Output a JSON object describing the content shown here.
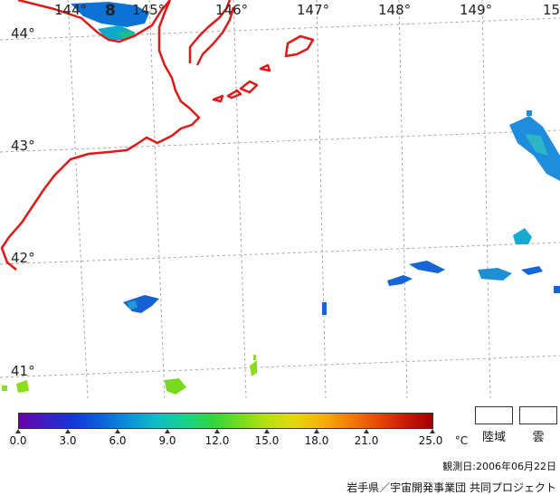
{
  "map": {
    "lon_labels": [
      "144°",
      "8",
      "145°",
      "146°",
      "147°",
      "148°",
      "149°",
      "15"
    ],
    "lat_labels": [
      "44°",
      "43°",
      "42°",
      "41°"
    ]
  },
  "colorbar": {
    "colors": [
      "#6a00a8",
      "#3c1fc4",
      "#1238d6",
      "#0a63dc",
      "#0a93d8",
      "#12bcc8",
      "#18d28e",
      "#2ed640",
      "#74dc1e",
      "#b8e012",
      "#e4d80c",
      "#f6b00a",
      "#f47c08",
      "#e64a06",
      "#c81c06",
      "#a00000"
    ],
    "tick_labels": [
      "0.0",
      "3.0",
      "6.0",
      "9.0",
      "12.0",
      "15.0",
      "18.0",
      "21.0",
      "25.0"
    ],
    "unit": "°C",
    "min": 0.0,
    "max": 25.0
  },
  "legend": {
    "land_label": "陸域",
    "cloud_label": "雲"
  },
  "footer": {
    "observation_date": "観測日:2006年06月22日",
    "credit": "岩手県／宇宙開発事業団 共同プロジェクト"
  },
  "colors": {
    "coastline": "#e01818",
    "grid": "#a8a8a8"
  }
}
